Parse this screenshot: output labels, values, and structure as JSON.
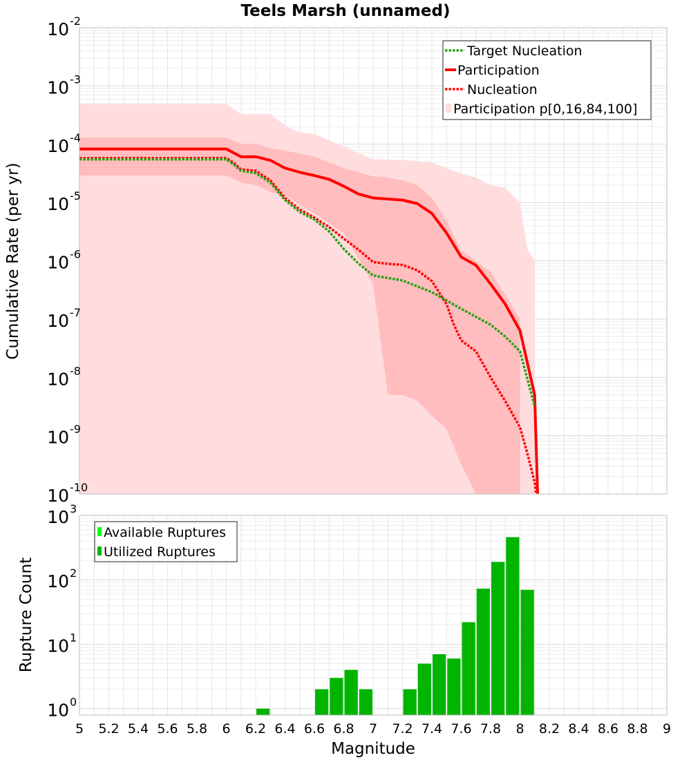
{
  "chart_data": [
    {
      "type": "line",
      "title": "Teels Marsh (unnamed)",
      "xlabel": "",
      "ylabel": "Cumulative Rate (per yr)",
      "xlim": [
        5,
        9
      ],
      "ylim_log10": [
        -10,
        -2
      ],
      "yscale": "log",
      "y_tick_exponents": [
        "-10",
        "-9",
        "-8",
        "-7",
        "-6",
        "-5",
        "-4",
        "-3",
        "-2"
      ],
      "y_tick_base": "10",
      "legend": {
        "placement": "top-right",
        "entries": [
          "Target Nucleation",
          "Participation",
          "Nucleation",
          "Participation p[0,16,84,100]"
        ]
      },
      "colors": {
        "target": "#2aa012",
        "participation": "#ff0000",
        "nucleation": "#ff0000",
        "band_outer": "#ffdddf",
        "band_inner": "#ffbdbf"
      },
      "series": [
        {
          "name": "Target Nucleation",
          "x": [
            5.0,
            6.0,
            6.05,
            6.1,
            6.2,
            6.3,
            6.4,
            6.5,
            6.6,
            6.7,
            6.8,
            6.9,
            7.0,
            7.2,
            7.4,
            7.6,
            7.8,
            7.9,
            8.0,
            8.1
          ],
          "values": [
            5.5e-05,
            5.5e-05,
            4.5e-05,
            3.5e-05,
            3.2e-05,
            2.2e-05,
            1.1e-05,
            6.9e-06,
            5.1e-06,
            3.2e-06,
            1.6e-06,
            9e-07,
            5.6e-07,
            4.6e-07,
            2.9e-07,
            1.5e-07,
            8e-08,
            5e-08,
            2.8e-08,
            3.2e-09
          ]
        },
        {
          "name": "Participation",
          "x": [
            5.0,
            6.0,
            6.1,
            6.2,
            6.3,
            6.4,
            6.5,
            6.6,
            6.7,
            6.8,
            6.9,
            7.0,
            7.2,
            7.3,
            7.4,
            7.5,
            7.6,
            7.7,
            7.8,
            7.9,
            8.0,
            8.1,
            8.12
          ],
          "values": [
            8.3e-05,
            8.3e-05,
            6.1e-05,
            6.1e-05,
            5.3e-05,
            3.9e-05,
            3.3e-05,
            2.9e-05,
            2.5e-05,
            1.9e-05,
            1.4e-05,
            1.2e-05,
            1.1e-05,
            9.6e-06,
            6.5e-06,
            3e-06,
            1.16e-06,
            8.4e-07,
            4e-07,
            1.8e-07,
            6.4e-08,
            5e-09,
            1e-10
          ]
        },
        {
          "name": "Nucleation",
          "x": [
            5.0,
            6.0,
            6.05,
            6.1,
            6.2,
            6.3,
            6.4,
            6.5,
            6.6,
            6.7,
            6.8,
            6.9,
            7.0,
            7.1,
            7.2,
            7.3,
            7.4,
            7.5,
            7.55,
            7.6,
            7.7,
            7.8,
            7.9,
            8.0,
            8.05,
            8.1,
            8.11
          ],
          "values": [
            5.8e-05,
            5.8e-05,
            4.8e-05,
            3.7e-05,
            3.5e-05,
            2.4e-05,
            1.2e-05,
            7.6e-06,
            5.5e-06,
            3.8e-06,
            2.4e-06,
            1.55e-06,
            9.5e-07,
            8.9e-07,
            8.5e-07,
            6.9e-07,
            4.5e-07,
            1.8e-07,
            8e-08,
            4.3e-08,
            2.8e-08,
            1e-08,
            3.9e-09,
            1.4e-09,
            5e-10,
            1.6e-10,
            1e-10
          ]
        }
      ],
      "band_outer": {
        "x": [
          5.0,
          6.0,
          6.1,
          6.3,
          6.4,
          6.5,
          6.6,
          7.0,
          7.2,
          7.4,
          7.5,
          7.6,
          7.7,
          7.8,
          7.9,
          8.0,
          8.05,
          8.1
        ],
        "upper": [
          0.00049,
          0.00049,
          0.00033,
          0.00033,
          0.00021,
          0.00016,
          0.00015,
          5.5e-05,
          5.4e-05,
          4.9e-05,
          3.9e-05,
          3.1e-05,
          2.7e-05,
          2e-05,
          1.8e-05,
          1e-05,
          1.6e-06,
          1e-06
        ],
        "lower": [
          1e-10,
          1e-10,
          1e-10,
          1e-10,
          1e-10,
          1e-10,
          1e-10,
          1e-10,
          1e-10,
          1e-10,
          1e-10,
          1e-10,
          1e-10,
          1e-10,
          1e-10,
          1e-10,
          1e-10,
          1e-10
        ]
      },
      "band_inner": {
        "x": [
          5.0,
          6.0,
          6.1,
          6.2,
          6.3,
          6.4,
          6.6,
          6.8,
          7.0,
          7.1,
          7.2,
          7.3,
          7.4,
          7.5,
          7.6,
          7.7,
          7.8,
          7.9,
          8.0
        ],
        "upper": [
          0.00013,
          0.00013,
          0.000102,
          0.000102,
          8.5e-05,
          7.8e-05,
          6.1e-05,
          3.9e-05,
          2.8e-05,
          2.7e-05,
          2.4e-05,
          2e-05,
          1.2e-05,
          4.9e-06,
          1.5e-06,
          1e-06,
          6.5e-07,
          2.6e-07,
          1e-07
        ],
        "lower": [
          2.9e-05,
          2.9e-05,
          2.2e-05,
          2e-05,
          1.5e-05,
          1.3e-05,
          6.5e-06,
          3e-06,
          4e-07,
          5e-09,
          5e-09,
          4e-09,
          2.2e-09,
          1.3e-09,
          3.2e-10,
          1e-10,
          1e-10,
          1e-10,
          1e-10
        ]
      }
    },
    {
      "type": "bar",
      "title": "",
      "xlabel": "Magnitude",
      "ylabel": "Rupture Count",
      "xlim": [
        5,
        9
      ],
      "yscale": "log",
      "ylim_log10": [
        -0.1,
        3
      ],
      "y_tick_exponents": [
        "0",
        "1",
        "2",
        "3"
      ],
      "y_tick_base": "10",
      "x_tick_labels": [
        "5",
        "5.2",
        "5.4",
        "5.6",
        "5.8",
        "6",
        "6.2",
        "6.4",
        "6.6",
        "6.8",
        "7",
        "7.2",
        "7.4",
        "7.6",
        "7.8",
        "8",
        "8.2",
        "8.4",
        "8.6",
        "8.8",
        "9"
      ],
      "legend": {
        "placement": "top-left",
        "entries": [
          "Available Ruptures",
          "Utilized Ruptures"
        ]
      },
      "colors": {
        "available": "#00ff00",
        "utilized": "#00b400"
      },
      "bin_width": 0.1,
      "series": [
        {
          "name": "Utilized Ruptures",
          "categories": [
            6.25,
            6.65,
            6.75,
            6.85,
            6.95,
            7.25,
            7.35,
            7.45,
            7.55,
            7.65,
            7.75,
            7.85,
            7.95,
            8.05
          ],
          "values": [
            1,
            2,
            3,
            4,
            2,
            2,
            5,
            7,
            6,
            22,
            73,
            190,
            460,
            70
          ]
        }
      ]
    }
  ]
}
